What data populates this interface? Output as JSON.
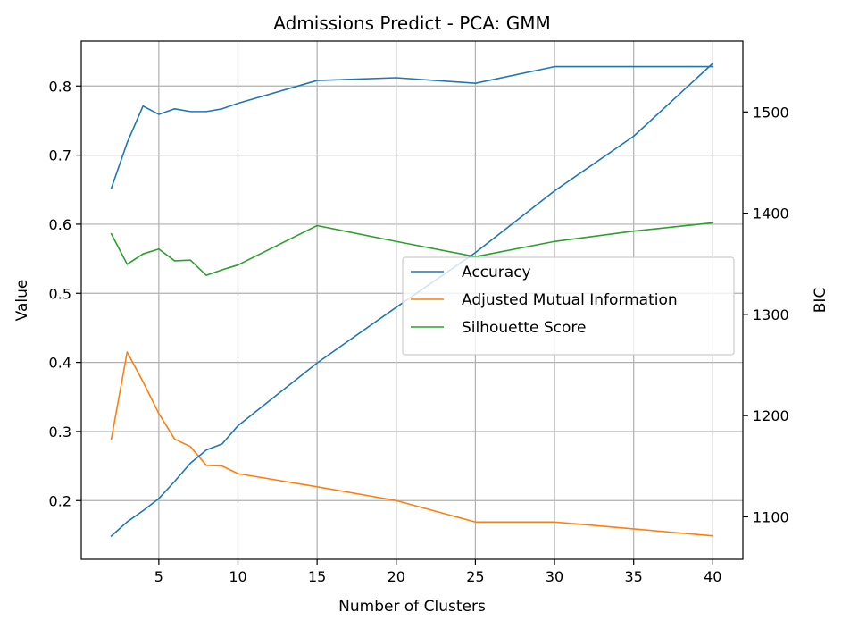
{
  "chart_data": {
    "type": "line",
    "title": "Admissions Predict - PCA: GMM",
    "xlabel": "Number of Clusters",
    "ylabel": "Value",
    "ylabel_right": "BIC",
    "xlim": [
      0.1,
      41.9
    ],
    "ylim": [
      0.115,
      0.865
    ],
    "ylim_right": [
      1058,
      1570
    ],
    "x_ticks": [
      5,
      10,
      15,
      20,
      25,
      30,
      35,
      40
    ],
    "y_ticks": [
      0.2,
      0.3,
      0.4,
      0.5,
      0.6,
      0.7,
      0.8
    ],
    "y_right_ticks": [
      1100,
      1200,
      1300,
      1400,
      1500
    ],
    "grid": true,
    "legend_position": "center-right",
    "x": [
      2,
      3,
      4,
      5,
      6,
      7,
      8,
      9,
      10,
      15,
      20,
      25,
      30,
      35,
      40
    ],
    "series": [
      {
        "name": "Accuracy",
        "axis": "left",
        "color": "#1f77b4",
        "in_legend": true,
        "values": [
          0.652,
          0.718,
          0.771,
          0.759,
          0.767,
          0.763,
          0.763,
          0.767,
          0.775,
          0.808,
          0.812,
          0.804,
          0.828,
          0.828,
          0.828
        ]
      },
      {
        "name": "Adjusted Mutual Information",
        "axis": "left",
        "color": "#ff7f0e",
        "in_legend": true,
        "values": [
          0.289,
          0.415,
          0.372,
          0.326,
          0.289,
          0.278,
          0.251,
          0.25,
          0.239,
          0.22,
          0.2,
          0.169,
          0.169,
          0.159,
          0.149
        ]
      },
      {
        "name": "Silhouette Score",
        "axis": "left",
        "color": "#2ca02c",
        "in_legend": true,
        "values": [
          0.586,
          0.542,
          0.557,
          0.564,
          0.547,
          0.548,
          0.526,
          0.534,
          0.541,
          0.598,
          0.575,
          0.553,
          0.575,
          0.59,
          0.602
        ]
      },
      {
        "name": "",
        "axis": "right",
        "color": "#1f77b4",
        "in_legend": false,
        "values": [
          1081,
          1095,
          1106,
          1118,
          1135,
          1153,
          1166,
          1172,
          1190,
          1252,
          1307,
          1361,
          1422,
          1476,
          1548
        ]
      }
    ]
  }
}
